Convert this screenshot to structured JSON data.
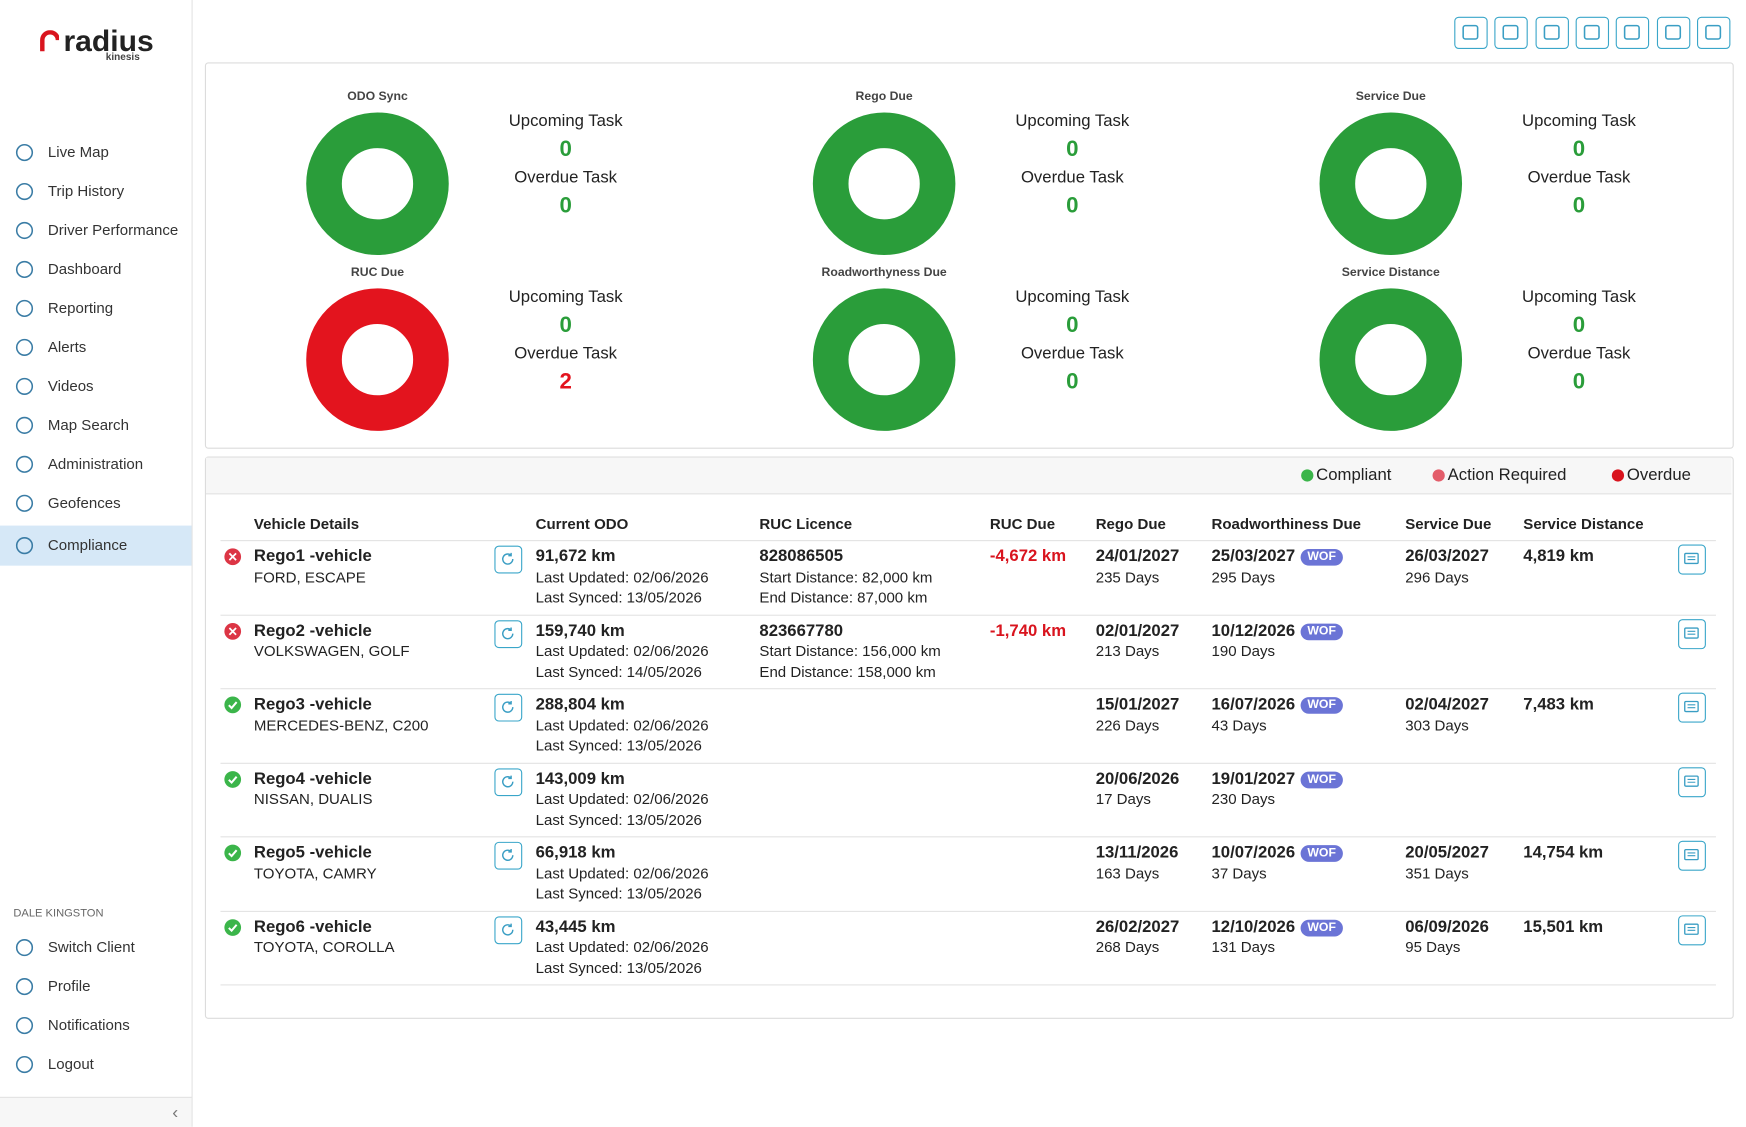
{
  "logo": {
    "brand": "radius",
    "sub": "kinesis"
  },
  "sidebar": {
    "nav": [
      "Live Map",
      "Trip History",
      "Driver Performance",
      "Dashboard",
      "Reporting",
      "Alerts",
      "Videos",
      "Map Search",
      "Administration",
      "Geofences",
      "Compliance"
    ],
    "active": 10,
    "user": "DALE KINGSTON",
    "account": [
      "Switch Client",
      "Profile",
      "Notifications",
      "Logout"
    ]
  },
  "summary": [
    {
      "title": "ODO Sync",
      "upcoming_label": "Upcoming Task",
      "upcoming": 0,
      "overdue_label": "Overdue Task",
      "overdue": 0
    },
    {
      "title": "Rego Due",
      "upcoming_label": "Upcoming Task",
      "upcoming": 0,
      "overdue_label": "Overdue Task",
      "overdue": 0
    },
    {
      "title": "Service Due",
      "upcoming_label": "Upcoming Task",
      "upcoming": 0,
      "overdue_label": "Overdue Task",
      "overdue": 0
    },
    {
      "title": "RUC Due",
      "upcoming_label": "Upcoming Task",
      "upcoming": 0,
      "overdue_label": "Overdue Task",
      "overdue": 2
    },
    {
      "title": "Roadworthyness Due",
      "upcoming_label": "Upcoming Task",
      "upcoming": 0,
      "overdue_label": "Overdue Task",
      "overdue": 0
    },
    {
      "title": "Service Distance",
      "upcoming_label": "Upcoming Task",
      "upcoming": 0,
      "overdue_label": "Overdue Task",
      "overdue": 0
    }
  ],
  "legend": [
    {
      "label": "Compliant",
      "color": "#3bb54a"
    },
    {
      "label": "Action Required",
      "color": "#e35d6a"
    },
    {
      "label": "Overdue",
      "color": "#d9141e"
    }
  ],
  "table": {
    "columns": [
      "Vehicle Details",
      "Current ODO",
      "RUC Licence",
      "RUC Due",
      "Rego Due",
      "Roadworthiness Due",
      "Service Due",
      "Service Distance"
    ],
    "rows": [
      {
        "status_color": "#dc3545",
        "vehicle": "Rego1 -vehicle",
        "model": "FORD, ESCAPE",
        "odo": "91,672 km",
        "odo_updated": "Last Updated: 02/06/2026",
        "odo_synced": "Last Synced: 13/05/2026",
        "ruc_licence": "828086505",
        "ruc_start": "Start Distance: 82,000 km",
        "ruc_end": "End Distance: 87,000 km",
        "ruc_due": "-4,672 km",
        "rego_due": "24/01/2027",
        "rego_days": "235 Days",
        "rwof_due": "25/03/2027",
        "rwof_tag": "WOF",
        "rwof_days": "295 Days",
        "service_due": "26/03/2027",
        "service_days": "296 Days",
        "service_distance": "4,819 km"
      },
      {
        "status_color": "#dc3545",
        "vehicle": "Rego2 -vehicle",
        "model": "VOLKSWAGEN, GOLF",
        "odo": "159,740 km",
        "odo_updated": "Last Updated: 02/06/2026",
        "odo_synced": "Last Synced: 14/05/2026",
        "ruc_licence": "823667780",
        "ruc_start": "Start Distance: 156,000 km",
        "ruc_end": "End Distance: 158,000 km",
        "ruc_due": "-1,740 km",
        "rego_due": "02/01/2027",
        "rego_days": "213 Days",
        "rwof_due": "10/12/2026",
        "rwof_tag": "WOF",
        "rwof_days": "190 Days",
        "service_due": null,
        "service_days": null,
        "service_distance": null
      },
      {
        "status_color": "#3bb54a",
        "vehicle": "Rego3 -vehicle",
        "model": "MERCEDES-BENZ, C200",
        "odo": "288,804 km",
        "odo_updated": "Last Updated: 02/06/2026",
        "odo_synced": "Last Synced: 13/05/2026",
        "ruc_licence": null,
        "ruc_start": null,
        "ruc_end": null,
        "ruc_due": null,
        "rego_due": "15/01/2027",
        "rego_days": "226 Days",
        "rwof_due": "16/07/2026",
        "rwof_tag": "WOF",
        "rwof_days": "43 Days",
        "service_due": "02/04/2027",
        "service_days": "303 Days",
        "service_distance": "7,483 km"
      },
      {
        "status_color": "#3bb54a",
        "vehicle": "Rego4 -vehicle",
        "model": "NISSAN, DUALIS",
        "odo": "143,009 km",
        "odo_updated": "Last Updated: 02/06/2026",
        "odo_synced": "Last Synced: 13/05/2026",
        "ruc_licence": null,
        "ruc_start": null,
        "ruc_end": null,
        "ruc_due": null,
        "rego_due": "20/06/2026",
        "rego_days": "17 Days",
        "rwof_due": "19/01/2027",
        "rwof_tag": "WOF",
        "rwof_days": "230 Days",
        "service_due": null,
        "service_days": null,
        "service_distance": null
      },
      {
        "status_color": "#3bb54a",
        "vehicle": "Rego5 -vehicle",
        "model": "TOYOTA, CAMRY",
        "odo": "66,918 km",
        "odo_updated": "Last Updated: 02/06/2026",
        "odo_synced": "Last Synced: 13/05/2026",
        "ruc_licence": null,
        "ruc_start": null,
        "ruc_end": null,
        "ruc_due": null,
        "rego_due": "13/11/2026",
        "rego_days": "163 Days",
        "rwof_due": "10/07/2026",
        "rwof_tag": "WOF",
        "rwof_days": "37 Days",
        "service_due": "20/05/2027",
        "service_days": "351 Days",
        "service_distance": "14,754 km"
      },
      {
        "status_color": "#3bb54a",
        "vehicle": "Rego6 -vehicle",
        "model": "TOYOTA, COROLLA",
        "odo": "43,445 km",
        "odo_updated": "Last Updated: 02/06/2026",
        "odo_synced": "Last Synced: 13/05/2026",
        "ruc_licence": null,
        "ruc_start": null,
        "ruc_end": null,
        "ruc_due": null,
        "rego_due": "26/02/2027",
        "rego_days": "268 Days",
        "rwof_due": "12/10/2026",
        "rwof_tag": "WOF",
        "rwof_days": "131 Days",
        "service_due": "06/09/2026",
        "service_days": "95 Days",
        "service_distance": "15,501 km"
      }
    ]
  }
}
